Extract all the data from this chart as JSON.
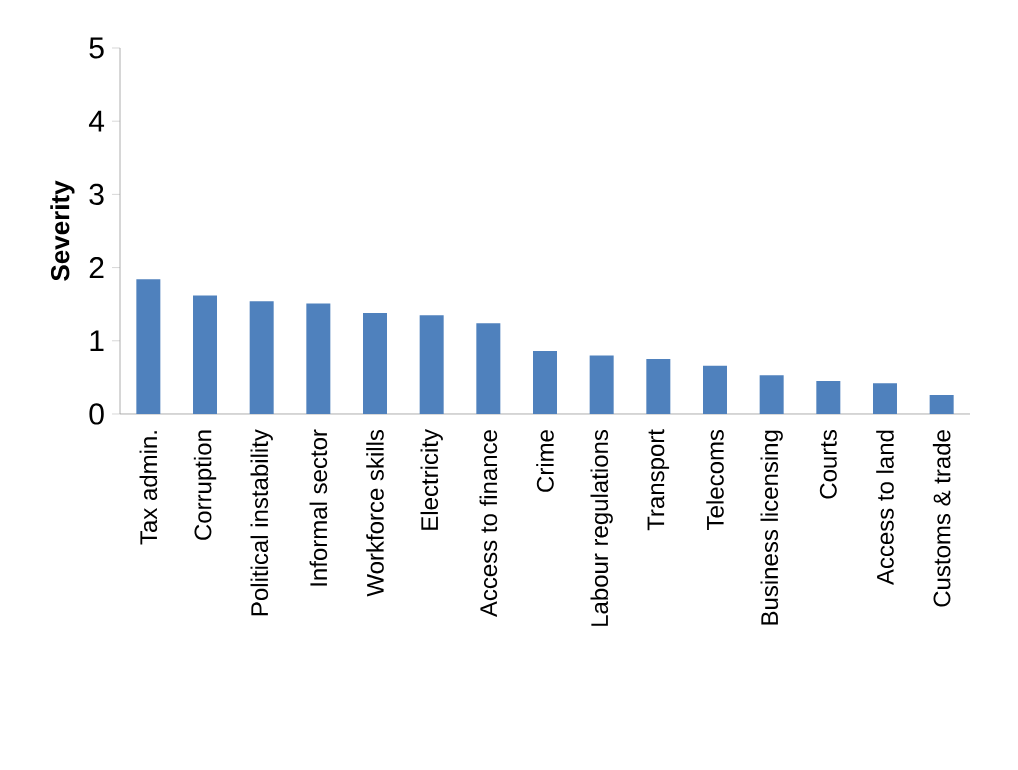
{
  "chart_data": {
    "type": "bar",
    "ylabel": "Severity",
    "categories": [
      "Tax admin.",
      "Corruption",
      "Political instability",
      "Informal sector",
      "Workforce skills",
      "Electricity",
      "Access to finance",
      "Crime",
      "Labour regulations",
      "Transport",
      "Telecoms",
      "Business licensing",
      "Courts",
      "Access to land",
      "Customs & trade"
    ],
    "values": [
      1.84,
      1.62,
      1.54,
      1.51,
      1.38,
      1.35,
      1.24,
      0.86,
      0.8,
      0.75,
      0.66,
      0.53,
      0.45,
      0.42,
      0.26
    ],
    "color": "#4f81bd",
    "ylim": [
      0,
      5
    ],
    "yticks": [
      0,
      1,
      2,
      3,
      4,
      5
    ]
  }
}
